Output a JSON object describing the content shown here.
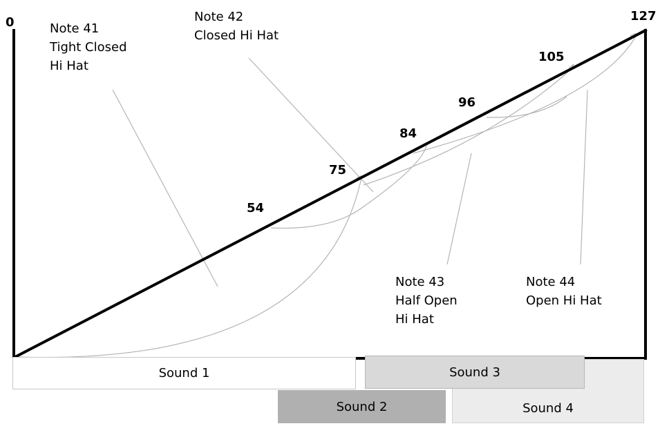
{
  "axis": {
    "min_label": "0",
    "max_label": "127"
  },
  "thresholds": [
    {
      "id": "t54",
      "label": "54"
    },
    {
      "id": "t75",
      "label": "75"
    },
    {
      "id": "t84",
      "label": "84"
    },
    {
      "id": "t96",
      "label": "96"
    },
    {
      "id": "t105",
      "label": "105"
    }
  ],
  "notes": [
    {
      "id": "note41",
      "lines": [
        "Note 41",
        "Tight Closed",
        "Hi Hat"
      ]
    },
    {
      "id": "note42",
      "lines": [
        "Note 42",
        "Closed Hi Hat"
      ]
    },
    {
      "id": "note43",
      "lines": [
        "Note 43",
        "Half Open",
        "Hi Hat"
      ]
    },
    {
      "id": "note44",
      "lines": [
        "Note 44",
        "Open Hi Hat"
      ]
    }
  ],
  "sounds": [
    {
      "id": "sound1",
      "label": "Sound 1",
      "fill": "#ffffff"
    },
    {
      "id": "sound2",
      "label": "Sound 2",
      "fill": "#b0b0b0"
    },
    {
      "id": "sound3",
      "label": "Sound 3",
      "fill": "#d9d9d9"
    },
    {
      "id": "sound4",
      "label": "Sound 4",
      "fill": "#ececec"
    }
  ]
}
